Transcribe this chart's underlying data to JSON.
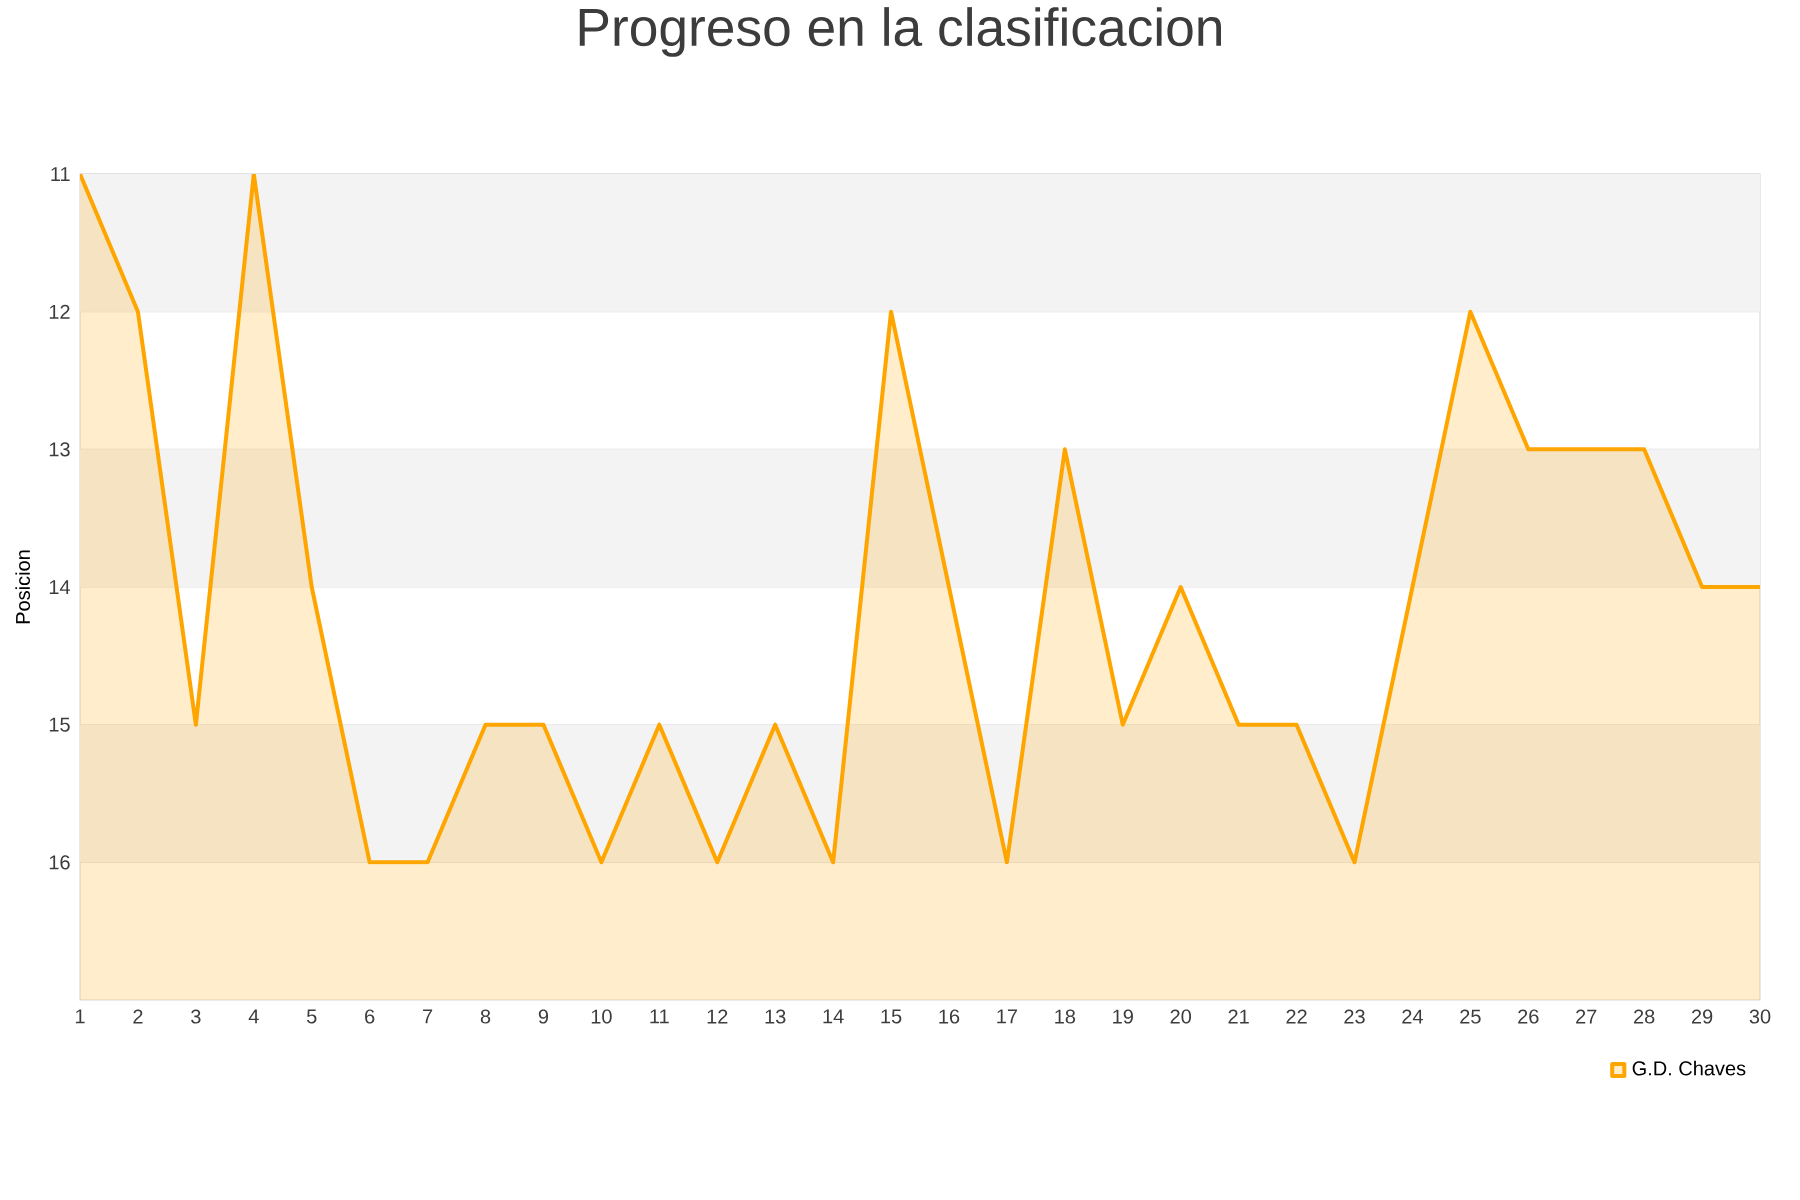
{
  "chart_data": {
    "type": "area",
    "title": "Progreso en la clasificacion",
    "ylabel": "Posicion",
    "x": [
      1,
      2,
      3,
      4,
      5,
      6,
      7,
      8,
      9,
      10,
      11,
      12,
      13,
      14,
      15,
      16,
      17,
      18,
      19,
      20,
      21,
      22,
      23,
      24,
      25,
      26,
      27,
      28,
      29,
      30
    ],
    "series": [
      {
        "name": "G.D. Chaves",
        "color": "#ffa500",
        "values": [
          11,
          12,
          15,
          11,
          14,
          16,
          16,
          15,
          15,
          16,
          15,
          16,
          15,
          16,
          12,
          14,
          16,
          13,
          15,
          14,
          15,
          15,
          16,
          14,
          12,
          13,
          13,
          13,
          14,
          14
        ]
      }
    ],
    "xlim": [
      1,
      30
    ],
    "xticks": [
      1,
      2,
      3,
      4,
      5,
      6,
      7,
      8,
      9,
      10,
      11,
      12,
      13,
      14,
      15,
      16,
      17,
      18,
      19,
      20,
      21,
      22,
      23,
      24,
      25,
      26,
      27,
      28,
      29,
      30
    ],
    "ylim": [
      17,
      11
    ],
    "yticks": [
      11,
      12,
      13,
      14,
      15,
      16
    ],
    "bands": [
      {
        "axis": "y",
        "from": 11,
        "to": 12,
        "color": "#f3f3f3"
      },
      {
        "axis": "y",
        "from": 13,
        "to": 14,
        "color": "#f3f3f3"
      },
      {
        "axis": "y",
        "from": 15,
        "to": 16,
        "color": "#f3f3f3"
      }
    ],
    "grid": "y",
    "legend": "bottom right",
    "marker": "none",
    "line_style": "solid"
  }
}
